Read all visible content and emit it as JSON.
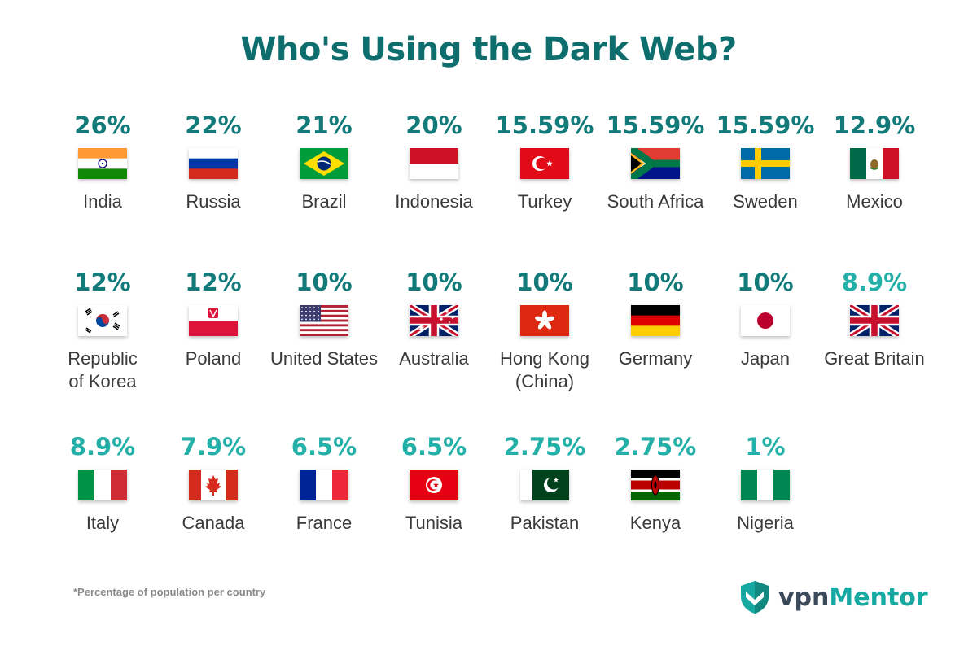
{
  "title": "Who's Using the Dark Web?",
  "footnote": "*Percentage of population per country",
  "brand": {
    "part1": "vpn",
    "part2": "Mentor"
  },
  "colors": {
    "title": "#0e6e6e",
    "dark_teal": "#137a7a",
    "light_teal": "#23b0a8",
    "brand_gray": "#3b4a5a",
    "brand_teal": "#16a9a1"
  },
  "chart_data": {
    "type": "table",
    "categories": [
      "India",
      "Russia",
      "Brazil",
      "Indonesia",
      "Turkey",
      "South Africa",
      "Sweden",
      "Mexico",
      "Republic of Korea",
      "Poland",
      "United States",
      "Australia",
      "Hong Kong (China)",
      "Germany",
      "Japan",
      "Great Britain",
      "Italy",
      "Canada",
      "France",
      "Tunisia",
      "Pakistan",
      "Kenya",
      "Nigeria"
    ],
    "values": [
      26,
      22,
      21,
      20,
      15.59,
      15.59,
      15.59,
      12.9,
      12,
      12,
      10,
      10,
      10,
      10,
      10,
      8.9,
      8.9,
      7.9,
      6.5,
      6.5,
      2.75,
      2.75,
      1
    ],
    "unit": "%",
    "items": [
      {
        "country": "India",
        "label": "26%",
        "flag": "india-flag-icon",
        "lines": [
          "India"
        ]
      },
      {
        "country": "Russia",
        "label": "22%",
        "flag": "russia-flag-icon",
        "lines": [
          "Russia"
        ]
      },
      {
        "country": "Brazil",
        "label": "21%",
        "flag": "brazil-flag-icon",
        "lines": [
          "Brazil"
        ]
      },
      {
        "country": "Indonesia",
        "label": "20%",
        "flag": "indonesia-flag-icon",
        "lines": [
          "Indonesia"
        ]
      },
      {
        "country": "Turkey",
        "label": "15.59%",
        "flag": "turkey-flag-icon",
        "lines": [
          "Turkey"
        ]
      },
      {
        "country": "South Africa",
        "label": "15.59%",
        "flag": "south-africa-flag-icon",
        "lines": [
          "South Africa"
        ]
      },
      {
        "country": "Sweden",
        "label": "15.59%",
        "flag": "sweden-flag-icon",
        "lines": [
          "Sweden"
        ]
      },
      {
        "country": "Mexico",
        "label": "12.9%",
        "flag": "mexico-flag-icon",
        "lines": [
          "Mexico"
        ]
      },
      {
        "country": "Republic of Korea",
        "label": "12%",
        "flag": "korea-flag-icon",
        "lines": [
          "Republic",
          "of Korea"
        ]
      },
      {
        "country": "Poland",
        "label": "12%",
        "flag": "poland-flag-icon",
        "lines": [
          "Poland"
        ]
      },
      {
        "country": "United States",
        "label": "10%",
        "flag": "usa-flag-icon",
        "lines": [
          "United States"
        ]
      },
      {
        "country": "Australia",
        "label": "10%",
        "flag": "australia-flag-icon",
        "lines": [
          "Australia"
        ]
      },
      {
        "country": "Hong Kong (China)",
        "label": "10%",
        "flag": "hong-kong-flag-icon",
        "lines": [
          "Hong Kong",
          "(China)"
        ]
      },
      {
        "country": "Germany",
        "label": "10%",
        "flag": "germany-flag-icon",
        "lines": [
          "Germany"
        ]
      },
      {
        "country": "Japan",
        "label": "10%",
        "flag": "japan-flag-icon",
        "lines": [
          "Japan"
        ]
      },
      {
        "country": "Great Britain",
        "label": "8.9%",
        "flag": "great-britain-flag-icon",
        "lines": [
          "Great Britain"
        ]
      },
      {
        "country": "Italy",
        "label": "8.9%",
        "flag": "italy-flag-icon",
        "lines": [
          "Italy"
        ]
      },
      {
        "country": "Canada",
        "label": "7.9%",
        "flag": "canada-flag-icon",
        "lines": [
          "Canada"
        ]
      },
      {
        "country": "France",
        "label": "6.5%",
        "flag": "france-flag-icon",
        "lines": [
          "France"
        ]
      },
      {
        "country": "Tunisia",
        "label": "6.5%",
        "flag": "tunisia-flag-icon",
        "lines": [
          "Tunisia"
        ]
      },
      {
        "country": "Pakistan",
        "label": "2.75%",
        "flag": "pakistan-flag-icon",
        "lines": [
          "Pakistan"
        ]
      },
      {
        "country": "Kenya",
        "label": "2.75%",
        "flag": "kenya-flag-icon",
        "lines": [
          "Kenya"
        ]
      },
      {
        "country": "Nigeria",
        "label": "1%",
        "flag": "nigeria-flag-icon",
        "lines": [
          "Nigeria"
        ]
      }
    ]
  }
}
